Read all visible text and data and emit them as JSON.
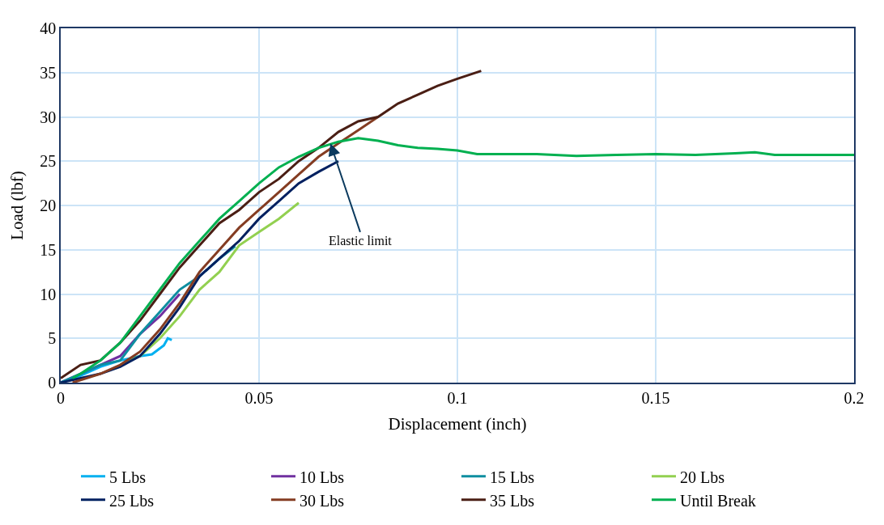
{
  "chart_data": {
    "type": "line",
    "xlabel": "Displacement (inch)",
    "ylabel": "Load (lbf)",
    "xlim": [
      0,
      0.2
    ],
    "xticks": [
      0,
      0.05,
      0.1,
      0.15,
      0.2
    ],
    "ylim": [
      0,
      40
    ],
    "yticks": [
      0,
      5,
      10,
      15,
      20,
      25,
      30,
      35,
      40
    ],
    "grid": true,
    "legend": "bottom",
    "marker": "none",
    "line_style": "solid",
    "annotations": [
      {
        "text": "Elastic limit",
        "x": 0.068,
        "y": 27
      }
    ],
    "series": [
      {
        "name": "5 Lbs",
        "color": "#00b0f0",
        "x": [
          0,
          0.005,
          0.01,
          0.015,
          0.02,
          0.023,
          0.026,
          0.027,
          0.028
        ],
        "values": [
          0,
          0.8,
          1.8,
          2.5,
          3,
          3.2,
          4.2,
          5,
          4.8
        ]
      },
      {
        "name": "10 Lbs",
        "color": "#7030a0",
        "x": [
          0,
          0.005,
          0.01,
          0.015,
          0.02,
          0.025,
          0.03
        ],
        "values": [
          0,
          1,
          2,
          3,
          5.5,
          7.5,
          10
        ]
      },
      {
        "name": "15 Lbs",
        "color": "#0e8ea0",
        "x": [
          0,
          0.005,
          0.01,
          0.015,
          0.02,
          0.025,
          0.03,
          0.035,
          0.04,
          0.044
        ],
        "values": [
          0,
          1,
          2,
          2.5,
          5.5,
          8,
          10.5,
          12,
          14,
          15.4
        ]
      },
      {
        "name": "20 Lbs",
        "color": "#92d050",
        "x": [
          0.015,
          0.02,
          0.025,
          0.03,
          0.035,
          0.04,
          0.045,
          0.05,
          0.055,
          0.06
        ],
        "values": [
          2,
          3,
          5,
          7.5,
          10.5,
          12.5,
          15.5,
          17,
          18.5,
          20.3
        ]
      },
      {
        "name": "25 Lbs",
        "color": "#002060",
        "x": [
          0,
          0.01,
          0.015,
          0.02,
          0.025,
          0.03,
          0.035,
          0.04,
          0.045,
          0.05,
          0.055,
          0.06,
          0.065,
          0.07
        ],
        "values": [
          0,
          1,
          1.8,
          3,
          5.5,
          8.5,
          12,
          14,
          16,
          18.5,
          20.5,
          22.5,
          23.8,
          25
        ]
      },
      {
        "name": "30 Lbs",
        "color": "#843c22",
        "x": [
          0.003,
          0.01,
          0.015,
          0.02,
          0.025,
          0.03,
          0.035,
          0.04,
          0.045,
          0.05,
          0.055,
          0.06,
          0.065,
          0.07,
          0.075,
          0.08
        ],
        "values": [
          0,
          1,
          2,
          3.5,
          6,
          9,
          12.5,
          15,
          17.5,
          19.5,
          21.5,
          23.5,
          25.5,
          27,
          28.5,
          30
        ]
      },
      {
        "name": "35 Lbs",
        "color": "#4a1e14",
        "x": [
          0,
          0.005,
          0.01,
          0.015,
          0.02,
          0.025,
          0.03,
          0.035,
          0.04,
          0.045,
          0.05,
          0.055,
          0.06,
          0.065,
          0.07,
          0.075,
          0.08,
          0.085,
          0.09,
          0.095,
          0.1,
          0.106
        ],
        "values": [
          0.5,
          2,
          2.5,
          4.5,
          7,
          10,
          13,
          15.5,
          18,
          19.5,
          21.5,
          23,
          25,
          26.5,
          28.3,
          29.5,
          30,
          31.5,
          32.5,
          33.5,
          34.3,
          35.2
        ]
      },
      {
        "name": "Until Break",
        "color": "#00b050",
        "x": [
          0.003,
          0.005,
          0.01,
          0.015,
          0.02,
          0.025,
          0.03,
          0.035,
          0.04,
          0.045,
          0.05,
          0.055,
          0.06,
          0.065,
          0.07,
          0.075,
          0.08,
          0.085,
          0.09,
          0.095,
          0.1,
          0.105,
          0.11,
          0.12,
          0.13,
          0.14,
          0.15,
          0.16,
          0.17,
          0.175,
          0.18,
          0.19,
          0.2
        ],
        "values": [
          0.5,
          1,
          2.5,
          4.5,
          7.5,
          10.5,
          13.5,
          16,
          18.5,
          20.5,
          22.5,
          24.3,
          25.5,
          26.5,
          27.2,
          27.6,
          27.3,
          26.8,
          26.5,
          26.4,
          26.2,
          25.8,
          25.8,
          25.8,
          25.6,
          25.7,
          25.8,
          25.7,
          25.9,
          26,
          25.7,
          25.7,
          25.7
        ]
      }
    ]
  }
}
